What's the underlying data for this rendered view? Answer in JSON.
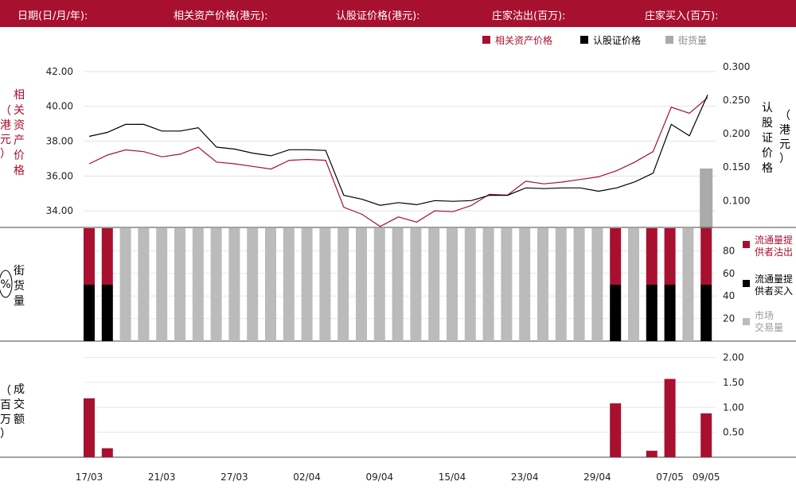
{
  "header": {
    "date": "日期(日/月/年):",
    "underlying": "相关资产价格(港元):",
    "warrant": "认股证价格(港元):",
    "issuer_sell": "庄家沽出(百万):",
    "issuer_buy": "庄家买入(百万):"
  },
  "legend_top": {
    "underlying": "相关资产价格",
    "warrant": "认股证价格",
    "street": "街货量"
  },
  "legend_mid": {
    "sell_line1": "流通量提",
    "sell_line2": "供者沽出",
    "buy_line1": "流通量提",
    "buy_line2": "供者买入",
    "market_line1": "市场",
    "market_line2": "交易量"
  },
  "axis_labels": {
    "left_top": [
      "相",
      "关",
      "资",
      "产",
      "价",
      "格"
    ],
    "left_top_unit": [
      "（",
      "港",
      "元",
      "）"
    ],
    "right_top": [
      "认",
      "股",
      "证",
      "价",
      "格"
    ],
    "right_top_unit": [
      "（",
      "港",
      "元",
      "）"
    ],
    "mid_left": [
      "街",
      "货",
      "量"
    ],
    "mid_left_unit": "%",
    "bottom_left": [
      "成",
      "交",
      "额"
    ],
    "bottom_left_unit": [
      "（",
      "百",
      "万",
      "）"
    ]
  },
  "colors": {
    "accent": "#a8102f",
    "warrant_line": "#000000",
    "market_gray": "#bbbbbb",
    "street_gray": "#aaaaaa"
  },
  "chart_data": [
    {
      "type": "line",
      "panel": "price",
      "left_ylim": [
        33,
        42.5
      ],
      "left_yticks": [
        "34.00",
        "36.00",
        "38.00",
        "40.00",
        "42.00"
      ],
      "right_ylim": [
        0.0588,
        0.3059
      ],
      "right_yticks": [
        "0.100",
        "0.150",
        "0.200",
        "0.250",
        "0.300"
      ],
      "series": [
        {
          "name": "相关资产价格",
          "axis": "left",
          "values": [
            36.7,
            37.2,
            37.5,
            37.4,
            37.1,
            37.25,
            37.65,
            36.8,
            36.7,
            36.55,
            36.4,
            36.9,
            36.95,
            36.9,
            34.2,
            33.8,
            33.1,
            33.65,
            33.35,
            34.0,
            33.95,
            34.3,
            34.95,
            34.9,
            35.7,
            35.55,
            35.65,
            35.8,
            35.95,
            36.3,
            36.8,
            37.4,
            39.95,
            39.6,
            40.5
          ]
        },
        {
          "name": "认股证价格",
          "axis": "right",
          "values": [
            0.196,
            0.202,
            0.214,
            0.214,
            0.204,
            0.204,
            0.209,
            0.18,
            0.177,
            0.171,
            0.167,
            0.176,
            0.176,
            0.175,
            0.108,
            0.102,
            0.093,
            0.097,
            0.094,
            0.1,
            0.099,
            0.1,
            0.108,
            0.108,
            0.119,
            0.118,
            0.119,
            0.119,
            0.114,
            0.119,
            0.128,
            0.141,
            0.214,
            0.197,
            0.258
          ]
        }
      ]
    },
    {
      "type": "bar",
      "panel": "street_volume",
      "ylim": [
        0,
        100
      ],
      "yticks": [
        "20",
        "40",
        "60",
        "80"
      ],
      "street_top_bar": {
        "index": 34,
        "value": 0.148,
        "axis": "right"
      },
      "bars": [
        {
          "sell": 50,
          "buy": 50
        },
        {
          "sell": 50,
          "buy": 50
        },
        {
          "market": 100
        },
        {
          "market": 100
        },
        {
          "market": 100
        },
        {
          "market": 100
        },
        {
          "market": 100
        },
        {
          "market": 100
        },
        {
          "market": 100
        },
        {
          "market": 100
        },
        {
          "market": 100
        },
        {
          "market": 100
        },
        {
          "market": 100
        },
        {
          "market": 100
        },
        {
          "market": 100
        },
        {
          "market": 100
        },
        {
          "market": 100
        },
        {
          "market": 100
        },
        {
          "market": 100
        },
        {
          "market": 100
        },
        {
          "market": 100
        },
        {
          "market": 100
        },
        {
          "market": 100
        },
        {
          "market": 100
        },
        {
          "market": 100
        },
        {
          "market": 100
        },
        {
          "market": 100
        },
        {
          "market": 100
        },
        {
          "market": 100
        },
        {
          "sell": 50,
          "buy": 50
        },
        {
          "market": 100
        },
        {
          "sell": 50,
          "buy": 50
        },
        {
          "sell": 50,
          "buy": 50
        },
        {
          "market": 100
        },
        {
          "sell": 50,
          "buy": 50
        }
      ]
    },
    {
      "type": "bar",
      "panel": "turnover",
      "ylim": [
        0,
        2.2
      ],
      "yticks": [
        "0.50",
        "1.00",
        "1.50",
        "2.00"
      ],
      "x_tick_labels": [
        "17/03",
        "21/03",
        "27/03",
        "02/04",
        "09/04",
        "15/04",
        "23/04",
        "29/04",
        "07/05",
        "09/05"
      ],
      "x_tick_index": [
        0,
        4,
        8,
        12,
        16,
        20,
        24,
        28,
        32,
        34
      ],
      "values": [
        1.18,
        0.18,
        0,
        0,
        0,
        0,
        0,
        0,
        0,
        0,
        0,
        0,
        0,
        0,
        0,
        0,
        0,
        0,
        0,
        0,
        0,
        0,
        0,
        0,
        0,
        0,
        0,
        0,
        0,
        1.08,
        0,
        0.13,
        1.57,
        0,
        0.88
      ]
    }
  ]
}
